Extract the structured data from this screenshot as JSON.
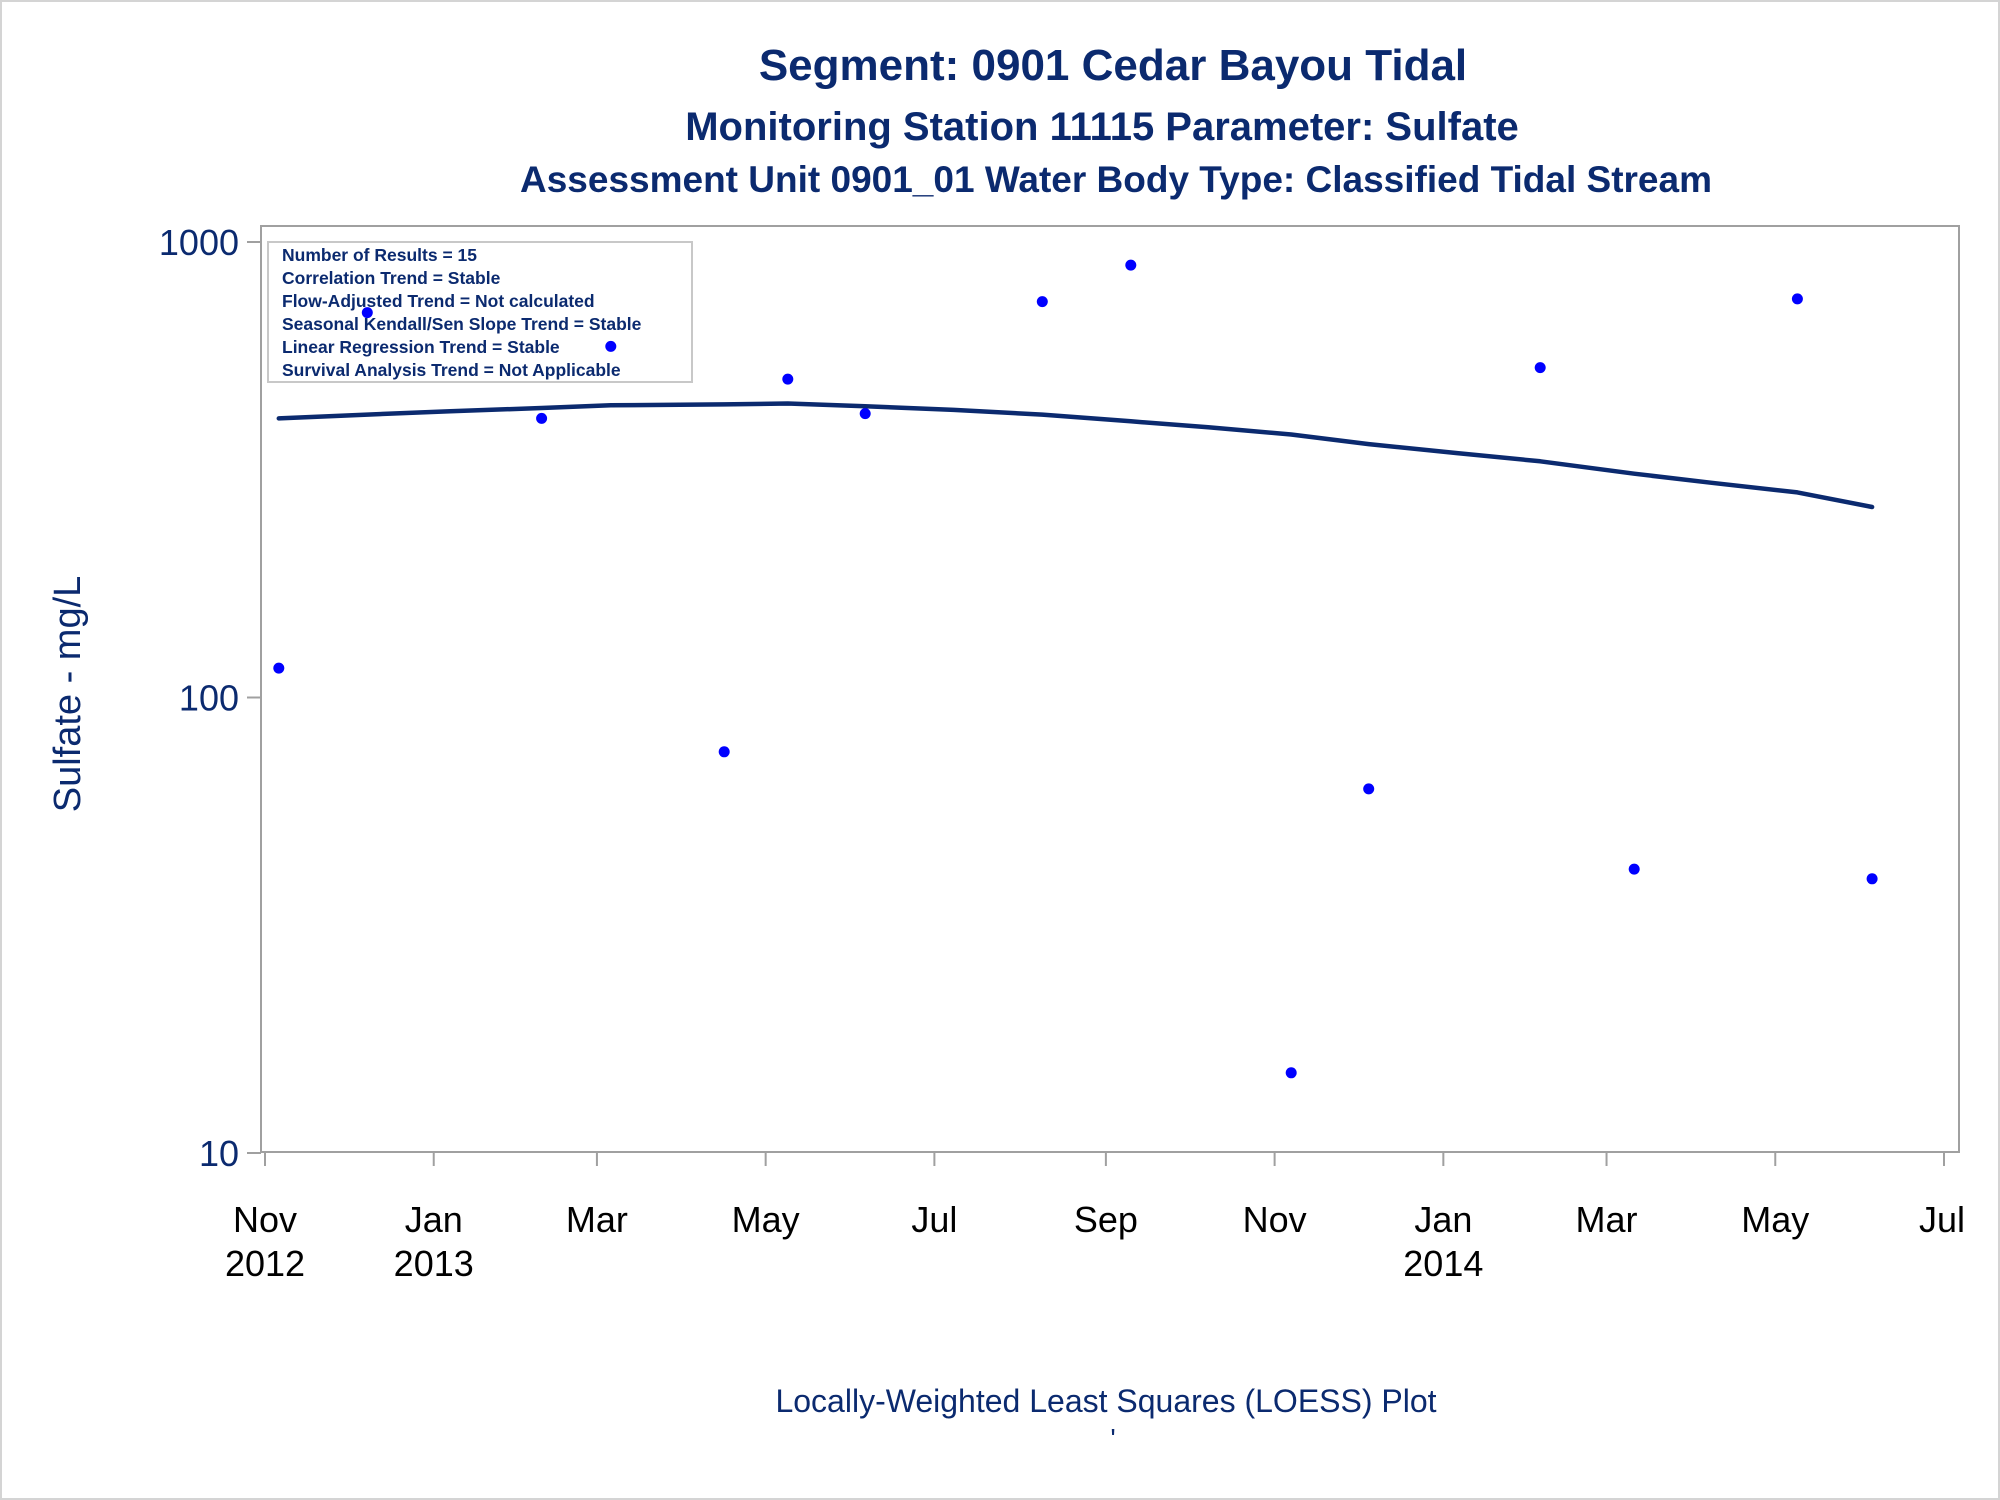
{
  "chart_data": {
    "type": "scatter",
    "title": "Segment: 0901  Cedar Bayou Tidal",
    "subtitle": "Monitoring Station 11115 Parameter: Sulfate",
    "subtitle2": "Assessment Unit 0901_01   Water Body Type: Classified Tidal Stream",
    "ylabel": "Sulfate - mg/L",
    "footnote": "Locally-Weighted Least Squares (LOESS) Plot",
    "footnote_mark": "'",
    "y_scale": "log",
    "ylim": [
      10,
      1000
    ],
    "xlim": [
      "2012-11-01",
      "2014-07-01"
    ],
    "y_ticks": [
      {
        "value": 10,
        "label": "10"
      },
      {
        "value": 100,
        "label": "100"
      },
      {
        "value": 1000,
        "label": "1000"
      }
    ],
    "x_ticks": [
      {
        "date": "2012-11-01",
        "line1": "Nov",
        "line2": "2012"
      },
      {
        "date": "2013-01-01",
        "line1": "Jan",
        "line2": "2013"
      },
      {
        "date": "2013-03-01",
        "line1": "Mar",
        "line2": ""
      },
      {
        "date": "2013-05-01",
        "line1": "May",
        "line2": ""
      },
      {
        "date": "2013-07-01",
        "line1": "Jul",
        "line2": ""
      },
      {
        "date": "2013-09-01",
        "line1": "Sep",
        "line2": ""
      },
      {
        "date": "2013-11-01",
        "line1": "Nov",
        "line2": ""
      },
      {
        "date": "2014-01-01",
        "line1": "Jan",
        "line2": "2014"
      },
      {
        "date": "2014-03-01",
        "line1": "Mar",
        "line2": ""
      },
      {
        "date": "2014-05-01",
        "line1": "May",
        "line2": ""
      },
      {
        "date": "2014-07-01",
        "line1": "Jul",
        "line2": ""
      }
    ],
    "grid": false,
    "legend": {
      "placement": "top-left",
      "lines": [
        "Number of Results = 15",
        "Correlation Trend = Stable",
        "Flow-Adjusted Trend = Not calculated",
        "Seasonal Kendall/Sen Slope Trend = Stable",
        "Linear Regression Trend = Stable",
        "Survival Analysis Trend = Not Applicable"
      ]
    },
    "colors": {
      "points": "#0000ff",
      "loess": "#0b2a6f",
      "text": "#0b2a6f",
      "axis": "#a0a0a0"
    },
    "series": [
      {
        "type": "scatter",
        "points": [
          {
            "x": "2012-11-06",
            "y": 116
          },
          {
            "x": "2012-12-08",
            "y": 700
          },
          {
            "x": "2013-02-09",
            "y": 410
          },
          {
            "x": "2013-03-06",
            "y": 590
          },
          {
            "x": "2013-04-16",
            "y": 76
          },
          {
            "x": "2013-05-09",
            "y": 500
          },
          {
            "x": "2013-06-06",
            "y": 420
          },
          {
            "x": "2013-08-09",
            "y": 740
          },
          {
            "x": "2013-09-10",
            "y": 890
          },
          {
            "x": "2013-11-07",
            "y": 15
          },
          {
            "x": "2013-12-05",
            "y": 63
          },
          {
            "x": "2014-02-05",
            "y": 530
          },
          {
            "x": "2014-03-11",
            "y": 42
          },
          {
            "x": "2014-05-09",
            "y": 750
          },
          {
            "x": "2014-06-05",
            "y": 40
          }
        ]
      },
      {
        "type": "line",
        "points": [
          {
            "x": "2012-11-06",
            "y": 410
          },
          {
            "x": "2012-12-08",
            "y": 418
          },
          {
            "x": "2013-01-07",
            "y": 425
          },
          {
            "x": "2013-02-09",
            "y": 432
          },
          {
            "x": "2013-03-06",
            "y": 438
          },
          {
            "x": "2013-04-16",
            "y": 440
          },
          {
            "x": "2013-05-09",
            "y": 442
          },
          {
            "x": "2013-06-06",
            "y": 436
          },
          {
            "x": "2013-07-08",
            "y": 428
          },
          {
            "x": "2013-08-09",
            "y": 418
          },
          {
            "x": "2013-09-10",
            "y": 404
          },
          {
            "x": "2013-10-08",
            "y": 392
          },
          {
            "x": "2013-11-07",
            "y": 378
          },
          {
            "x": "2013-12-05",
            "y": 360
          },
          {
            "x": "2014-01-06",
            "y": 344
          },
          {
            "x": "2014-02-05",
            "y": 330
          },
          {
            "x": "2014-03-11",
            "y": 310
          },
          {
            "x": "2014-04-08",
            "y": 296
          },
          {
            "x": "2014-05-09",
            "y": 282
          },
          {
            "x": "2014-06-05",
            "y": 262
          }
        ]
      }
    ]
  }
}
